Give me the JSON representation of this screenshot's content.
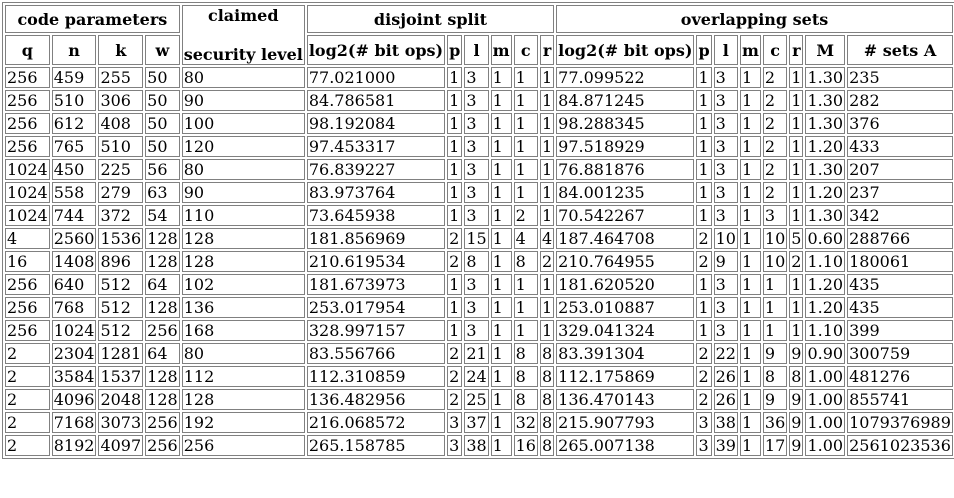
{
  "groups": {
    "code_parameters": "code parameters",
    "claimed_line1": "claimed",
    "claimed_line2": "security level",
    "disjoint_split": "disjoint split",
    "overlapping_sets": "overlapping sets"
  },
  "columns": [
    "q",
    "n",
    "k",
    "w",
    "log2(# bit ops)",
    "p",
    "l",
    "m",
    "c",
    "r",
    "log2(# bit ops)",
    "p",
    "l",
    "m",
    "c",
    "r",
    "M",
    "# sets A"
  ],
  "rows": [
    [
      "256",
      "459",
      "255",
      "50",
      "80",
      "77.021000",
      "1",
      "3",
      "1",
      "1",
      "1",
      "77.099522",
      "1",
      "3",
      "1",
      "2",
      "1",
      "1.30",
      "235"
    ],
    [
      "256",
      "510",
      "306",
      "50",
      "90",
      "84.786581",
      "1",
      "3",
      "1",
      "1",
      "1",
      "84.871245",
      "1",
      "3",
      "1",
      "2",
      "1",
      "1.30",
      "282"
    ],
    [
      "256",
      "612",
      "408",
      "50",
      "100",
      "98.192084",
      "1",
      "3",
      "1",
      "1",
      "1",
      "98.288345",
      "1",
      "3",
      "1",
      "2",
      "1",
      "1.30",
      "376"
    ],
    [
      "256",
      "765",
      "510",
      "50",
      "120",
      "97.453317",
      "1",
      "3",
      "1",
      "1",
      "1",
      "97.518929",
      "1",
      "3",
      "1",
      "2",
      "1",
      "1.20",
      "433"
    ],
    [
      "1024",
      "450",
      "225",
      "56",
      "80",
      "76.839227",
      "1",
      "3",
      "1",
      "1",
      "1",
      "76.881876",
      "1",
      "3",
      "1",
      "2",
      "1",
      "1.30",
      "207"
    ],
    [
      "1024",
      "558",
      "279",
      "63",
      "90",
      "83.973764",
      "1",
      "3",
      "1",
      "1",
      "1",
      "84.001235",
      "1",
      "3",
      "1",
      "2",
      "1",
      "1.20",
      "237"
    ],
    [
      "1024",
      "744",
      "372",
      "54",
      "110",
      "73.645938",
      "1",
      "3",
      "1",
      "2",
      "1",
      "70.542267",
      "1",
      "3",
      "1",
      "3",
      "1",
      "1.30",
      "342"
    ],
    [
      "4",
      "2560",
      "1536",
      "128",
      "128",
      "181.856969",
      "2",
      "15",
      "1",
      "4",
      "4",
      "187.464708",
      "2",
      "10",
      "1",
      "10",
      "5",
      "0.60",
      "288766"
    ],
    [
      "16",
      "1408",
      "896",
      "128",
      "128",
      "210.619534",
      "2",
      "8",
      "1",
      "8",
      "2",
      "210.764955",
      "2",
      "9",
      "1",
      "10",
      "2",
      "1.10",
      "180061"
    ],
    [
      "256",
      "640",
      "512",
      "64",
      "102",
      "181.673973",
      "1",
      "3",
      "1",
      "1",
      "1",
      "181.620520",
      "1",
      "3",
      "1",
      "1",
      "1",
      "1.20",
      "435"
    ],
    [
      "256",
      "768",
      "512",
      "128",
      "136",
      "253.017954",
      "1",
      "3",
      "1",
      "1",
      "1",
      "253.010887",
      "1",
      "3",
      "1",
      "1",
      "1",
      "1.20",
      "435"
    ],
    [
      "256",
      "1024",
      "512",
      "256",
      "168",
      "328.997157",
      "1",
      "3",
      "1",
      "1",
      "1",
      "329.041324",
      "1",
      "3",
      "1",
      "1",
      "1",
      "1.10",
      "399"
    ],
    [
      "2",
      "2304",
      "1281",
      "64",
      "80",
      "83.556766",
      "2",
      "21",
      "1",
      "8",
      "8",
      "83.391304",
      "2",
      "22",
      "1",
      "9",
      "9",
      "0.90",
      "300759"
    ],
    [
      "2",
      "3584",
      "1537",
      "128",
      "112",
      "112.310859",
      "2",
      "24",
      "1",
      "8",
      "8",
      "112.175869",
      "2",
      "26",
      "1",
      "8",
      "8",
      "1.00",
      "481276"
    ],
    [
      "2",
      "4096",
      "2048",
      "128",
      "128",
      "136.482956",
      "2",
      "25",
      "1",
      "8",
      "8",
      "136.470143",
      "2",
      "26",
      "1",
      "9",
      "9",
      "1.00",
      "855741"
    ],
    [
      "2",
      "7168",
      "3073",
      "256",
      "192",
      "216.068572",
      "3",
      "37",
      "1",
      "32",
      "8",
      "215.907793",
      "3",
      "38",
      "1",
      "36",
      "9",
      "1.00",
      "1079376989"
    ],
    [
      "2",
      "8192",
      "4097",
      "256",
      "256",
      "265.158785",
      "3",
      "38",
      "1",
      "16",
      "8",
      "265.007138",
      "3",
      "39",
      "1",
      "17",
      "9",
      "1.00",
      "2561023536"
    ]
  ]
}
